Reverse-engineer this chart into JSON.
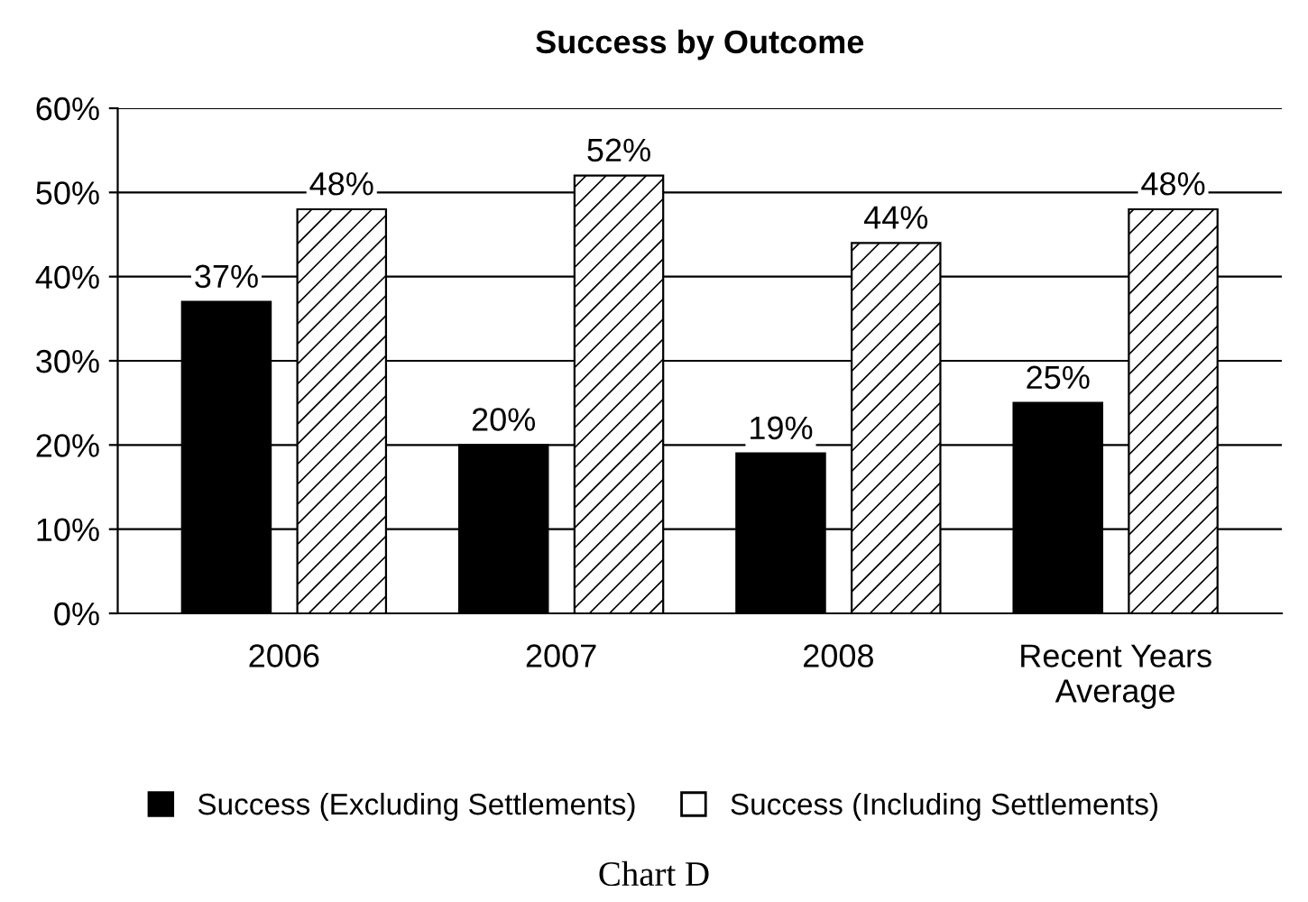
{
  "chart_data": {
    "type": "bar",
    "title": "Success by Outcome",
    "categories": [
      "2006",
      "2007",
      "2008",
      "Recent Years\nAverage"
    ],
    "series": [
      {
        "name": "Success (Excluding Settlements)",
        "color": "#000000",
        "values": [
          37,
          20,
          19,
          25
        ],
        "value_labels": [
          "37%",
          "20%",
          "19%",
          "25%"
        ]
      },
      {
        "name": "Success (Including Settlements)",
        "color": "#ffffff",
        "values": [
          48,
          52,
          44,
          48
        ],
        "value_labels": [
          "48%",
          "52%",
          "44%",
          "48%"
        ]
      }
    ],
    "ylim": [
      0,
      60
    ],
    "yticks": [
      {
        "value": 0,
        "label": "0%"
      },
      {
        "value": 10,
        "label": "10%"
      },
      {
        "value": 20,
        "label": "20%"
      },
      {
        "value": 30,
        "label": "30%"
      },
      {
        "value": 40,
        "label": "40%"
      },
      {
        "value": 50,
        "label": "50%"
      },
      {
        "value": 60,
        "label": "60%"
      }
    ],
    "grid": "y",
    "legend": "bottom",
    "annotations": [
      "Chart D"
    ]
  }
}
